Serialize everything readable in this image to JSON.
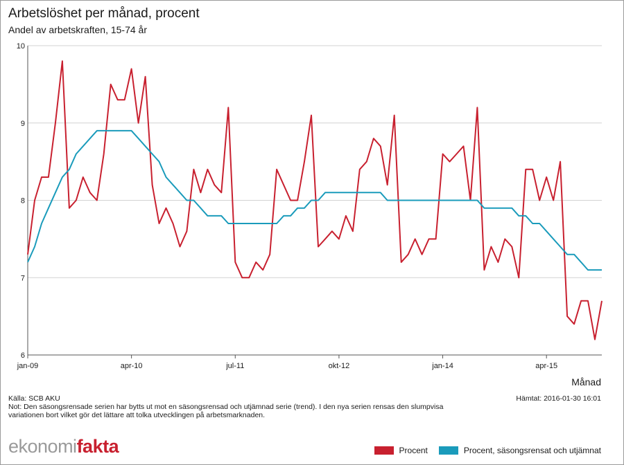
{
  "header": {
    "title": "Arbetslöshet per månad, procent",
    "subtitle": "Andel av arbetskraften, 15-74 år"
  },
  "footer": {
    "source": "Källa: SCB AKU",
    "fetched": "Hämtat: 2016-01-30 16:01",
    "note": "Not: Den säsongsrensade serien har bytts ut mot en säsongsrensad och utjämnad serie (trend). I den nya serien rensas den slumpvisa variationen bort vilket gör det lättare att tolka utvecklingen på arbetsmarknaden."
  },
  "brand": {
    "part1": "ekonomi",
    "part2": "fakta",
    "color_gray": "#9a9a9a",
    "color_red": "#c8202f"
  },
  "chart_data": {
    "type": "line",
    "title": "Arbetslöshet per månad, procent",
    "subtitle": "Andel av arbetskraften, 15-74 år",
    "xlabel": "Månad",
    "ylabel": "",
    "ylim": [
      6,
      10
    ],
    "yticks": [
      6,
      7,
      8,
      9,
      10
    ],
    "grid": true,
    "legend_position": "bottom-right",
    "x_start": "2009-01",
    "x_end": "2015-12",
    "xticks": [
      {
        "label": "jan-09",
        "index": 0
      },
      {
        "label": "apr-10",
        "index": 15
      },
      {
        "label": "jul-11",
        "index": 30
      },
      {
        "label": "okt-12",
        "index": 45
      },
      {
        "label": "jan-14",
        "index": 60
      },
      {
        "label": "apr-15",
        "index": 75
      }
    ],
    "series": [
      {
        "name": "Procent",
        "color": "#c8202f",
        "values": [
          7.3,
          8.0,
          8.3,
          8.3,
          9.0,
          9.8,
          7.9,
          8.0,
          8.3,
          8.1,
          8.0,
          8.6,
          9.5,
          9.3,
          9.3,
          9.7,
          9.0,
          9.6,
          8.2,
          7.7,
          7.9,
          7.7,
          7.4,
          7.6,
          8.4,
          8.1,
          8.4,
          8.2,
          8.1,
          9.2,
          7.2,
          7.0,
          7.0,
          7.2,
          7.1,
          7.3,
          8.4,
          8.2,
          8.0,
          8.0,
          8.5,
          9.1,
          7.4,
          7.5,
          7.6,
          7.5,
          7.8,
          7.6,
          8.4,
          8.5,
          8.8,
          8.7,
          8.2,
          9.1,
          7.2,
          7.3,
          7.5,
          7.3,
          7.5,
          7.5,
          8.6,
          8.5,
          8.6,
          8.7,
          8.0,
          9.2,
          7.1,
          7.4,
          7.2,
          7.5,
          7.4,
          7.0,
          8.4,
          8.4,
          8.0,
          8.3,
          8.0,
          8.5,
          6.5,
          6.4,
          6.7,
          6.7,
          6.2,
          6.7
        ]
      },
      {
        "name": "Procent, säsongsrensat och utjämnat",
        "color": "#1a9bbb",
        "values": [
          7.2,
          7.4,
          7.7,
          7.9,
          8.1,
          8.3,
          8.4,
          8.6,
          8.7,
          8.8,
          8.9,
          8.9,
          8.9,
          8.9,
          8.9,
          8.9,
          8.8,
          8.7,
          8.6,
          8.5,
          8.3,
          8.2,
          8.1,
          8.0,
          8.0,
          7.9,
          7.8,
          7.8,
          7.8,
          7.7,
          7.7,
          7.7,
          7.7,
          7.7,
          7.7,
          7.7,
          7.7,
          7.8,
          7.8,
          7.9,
          7.9,
          8.0,
          8.0,
          8.1,
          8.1,
          8.1,
          8.1,
          8.1,
          8.1,
          8.1,
          8.1,
          8.1,
          8.0,
          8.0,
          8.0,
          8.0,
          8.0,
          8.0,
          8.0,
          8.0,
          8.0,
          8.0,
          8.0,
          8.0,
          8.0,
          8.0,
          7.9,
          7.9,
          7.9,
          7.9,
          7.9,
          7.8,
          7.8,
          7.7,
          7.7,
          7.6,
          7.5,
          7.4,
          7.3,
          7.3,
          7.2,
          7.1,
          7.1,
          7.1
        ]
      }
    ]
  }
}
